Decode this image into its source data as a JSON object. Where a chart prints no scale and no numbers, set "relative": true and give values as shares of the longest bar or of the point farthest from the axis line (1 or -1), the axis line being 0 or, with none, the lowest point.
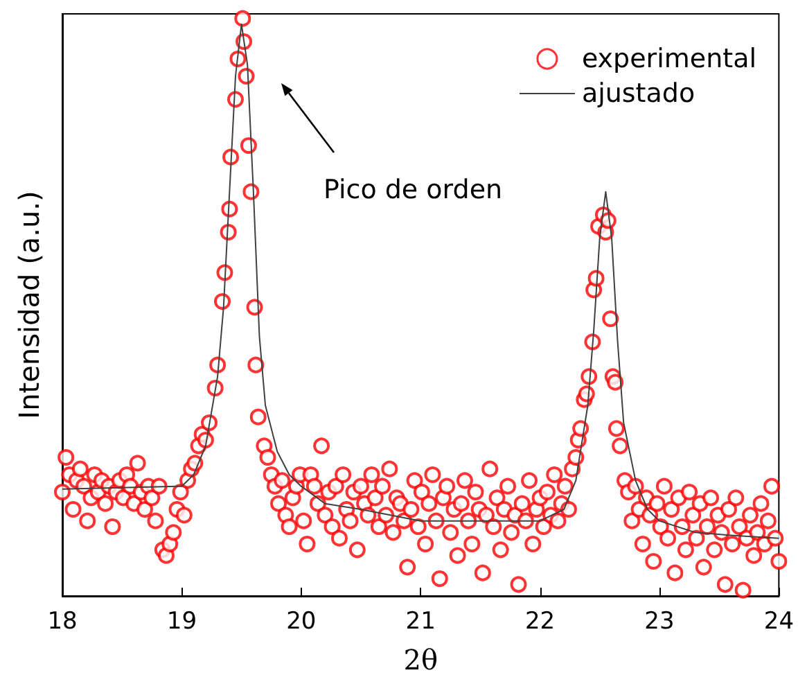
{
  "chart_data": {
    "type": "scatter",
    "relative": true,
    "xlabel": "2θ",
    "ylabel": "Intensidad (a.u.)",
    "xlim": [
      18,
      24
    ],
    "xticks": [
      18,
      19,
      20,
      21,
      22,
      23,
      24
    ],
    "grid": false,
    "legend": "top right",
    "tick_labels": "x",
    "annotations": [
      "Pico de orden"
    ],
    "series": [
      {
        "name": "experimental",
        "color": "#ff0000",
        "marker": "circle",
        "x": [
          18.0,
          18.03,
          18.06,
          18.09,
          18.12,
          18.15,
          18.18,
          18.21,
          18.24,
          18.27,
          18.3,
          18.33,
          18.36,
          18.39,
          18.42,
          18.45,
          18.48,
          18.51,
          18.54,
          18.57,
          18.6,
          18.63,
          18.66,
          18.69,
          18.72,
          18.75,
          18.78,
          18.81,
          18.84,
          18.87,
          18.9,
          18.93,
          18.96,
          18.99,
          19.02,
          19.05,
          19.08,
          19.11,
          19.14,
          19.17,
          19.2,
          19.23,
          19.28,
          19.3,
          19.34,
          19.36,
          19.39,
          19.4,
          19.41,
          19.45,
          19.47,
          19.51,
          19.52,
          19.54,
          19.56,
          19.58,
          19.61,
          19.62,
          19.64,
          19.69,
          19.72,
          19.75,
          19.78,
          19.81,
          19.84,
          19.87,
          19.9,
          19.93,
          19.96,
          19.99,
          20.02,
          20.05,
          20.08,
          20.11,
          20.14,
          20.17,
          20.2,
          20.23,
          20.26,
          20.29,
          20.32,
          20.35,
          20.38,
          20.41,
          20.44,
          20.47,
          20.5,
          20.53,
          20.56,
          20.59,
          20.62,
          20.65,
          20.68,
          20.71,
          20.74,
          20.77,
          20.8,
          20.83,
          20.86,
          20.89,
          20.92,
          20.95,
          20.98,
          21.01,
          21.04,
          21.07,
          21.1,
          21.13,
          21.16,
          21.19,
          21.22,
          21.25,
          21.28,
          21.31,
          21.34,
          21.37,
          21.4,
          21.43,
          21.46,
          21.49,
          21.52,
          21.55,
          21.58,
          21.61,
          21.64,
          21.67,
          21.7,
          21.73,
          21.76,
          21.79,
          21.82,
          21.85,
          21.88,
          21.91,
          21.94,
          21.97,
          22.0,
          22.03,
          22.06,
          22.09,
          22.12,
          22.15,
          22.18,
          22.21,
          22.24,
          22.27,
          22.3,
          22.32,
          22.34,
          22.37,
          22.39,
          22.41,
          22.44,
          22.45,
          22.47,
          22.49,
          22.53,
          22.55,
          22.57,
          22.59,
          22.61,
          22.63,
          22.64,
          22.67,
          22.71,
          22.74,
          22.77,
          22.8,
          22.83,
          22.86,
          22.89,
          22.92,
          22.95,
          22.98,
          23.01,
          23.04,
          23.07,
          23.1,
          23.13,
          23.16,
          23.19,
          23.22,
          23.25,
          23.28,
          23.31,
          23.34,
          23.37,
          23.4,
          23.43,
          23.46,
          23.49,
          23.52,
          23.55,
          23.58,
          23.61,
          23.64,
          23.67,
          23.7,
          23.73,
          23.76,
          23.79,
          23.82,
          23.85,
          23.88,
          23.91,
          23.94,
          23.97,
          24.0
        ],
        "values": [
          0.18,
          0.24,
          0.21,
          0.15,
          0.2,
          0.22,
          0.19,
          0.13,
          0.17,
          0.21,
          0.18,
          0.2,
          0.16,
          0.19,
          0.12,
          0.18,
          0.2,
          0.17,
          0.21,
          0.19,
          0.16,
          0.23,
          0.18,
          0.15,
          0.19,
          0.17,
          0.13,
          0.19,
          0.08,
          0.07,
          0.09,
          0.11,
          0.15,
          0.18,
          0.14,
          0.2,
          0.22,
          0.23,
          0.26,
          0.28,
          0.27,
          0.3,
          0.36,
          0.4,
          0.51,
          0.56,
          0.63,
          0.67,
          0.76,
          0.86,
          0.93,
          1.0,
          0.96,
          0.9,
          0.78,
          0.7,
          0.5,
          0.4,
          0.31,
          0.26,
          0.24,
          0.21,
          0.19,
          0.16,
          0.2,
          0.14,
          0.12,
          0.17,
          0.19,
          0.21,
          0.13,
          0.09,
          0.21,
          0.19,
          0.16,
          0.26,
          0.14,
          0.18,
          0.12,
          0.19,
          0.1,
          0.21,
          0.15,
          0.13,
          0.18,
          0.08,
          0.19,
          0.16,
          0.14,
          0.21,
          0.17,
          0.12,
          0.19,
          0.14,
          0.22,
          0.11,
          0.17,
          0.16,
          0.13,
          0.05,
          0.15,
          0.2,
          0.12,
          0.18,
          0.09,
          0.16,
          0.21,
          0.13,
          0.03,
          0.17,
          0.19,
          0.11,
          0.15,
          0.07,
          0.16,
          0.2,
          0.13,
          0.09,
          0.18,
          0.15,
          0.04,
          0.14,
          0.22,
          0.12,
          0.17,
          0.08,
          0.15,
          0.19,
          0.11,
          0.14,
          0.02,
          0.16,
          0.13,
          0.2,
          0.09,
          0.15,
          0.17,
          0.12,
          0.18,
          0.14,
          0.21,
          0.13,
          0.16,
          0.19,
          0.15,
          0.22,
          0.24,
          0.27,
          0.29,
          0.34,
          0.35,
          0.38,
          0.44,
          0.53,
          0.55,
          0.64,
          0.66,
          0.63,
          0.65,
          0.48,
          0.38,
          0.37,
          0.29,
          0.26,
          0.2,
          0.18,
          0.13,
          0.19,
          0.15,
          0.09,
          0.17,
          0.14,
          0.06,
          0.16,
          0.12,
          0.19,
          0.1,
          0.15,
          0.04,
          0.17,
          0.12,
          0.08,
          0.18,
          0.14,
          0.1,
          0.16,
          0.05,
          0.12,
          0.17,
          0.08,
          0.14,
          0.11,
          0.02,
          0.15,
          0.09,
          0.17,
          0.12,
          0.01,
          0.1,
          0.14,
          0.07,
          0.11,
          0.16,
          0.09,
          0.13,
          0.19,
          0.1,
          0.06
        ]
      },
      {
        "name": "ajustado",
        "type": "line",
        "color": "#404040",
        "marker": "none",
        "line_style": "solid",
        "x": [
          18,
          19.0,
          19.1,
          19.2,
          19.3,
          19.35,
          19.4,
          19.45,
          19.5,
          19.55,
          19.6,
          19.65,
          19.7,
          19.8,
          19.9,
          20.0,
          20.2,
          20.5,
          21.0,
          21.5,
          22.0,
          22.2,
          22.3,
          22.4,
          22.45,
          22.5,
          22.55,
          22.6,
          22.65,
          22.7,
          22.8,
          22.9,
          23.0,
          23.3,
          23.6,
          24.0
        ],
        "values": [
          0.185,
          0.19,
          0.21,
          0.26,
          0.38,
          0.5,
          0.7,
          0.9,
          0.99,
          0.92,
          0.7,
          0.45,
          0.33,
          0.25,
          0.21,
          0.19,
          0.16,
          0.15,
          0.13,
          0.13,
          0.13,
          0.15,
          0.2,
          0.33,
          0.46,
          0.62,
          0.7,
          0.62,
          0.44,
          0.3,
          0.2,
          0.15,
          0.13,
          0.11,
          0.105,
          0.1
        ]
      }
    ]
  }
}
